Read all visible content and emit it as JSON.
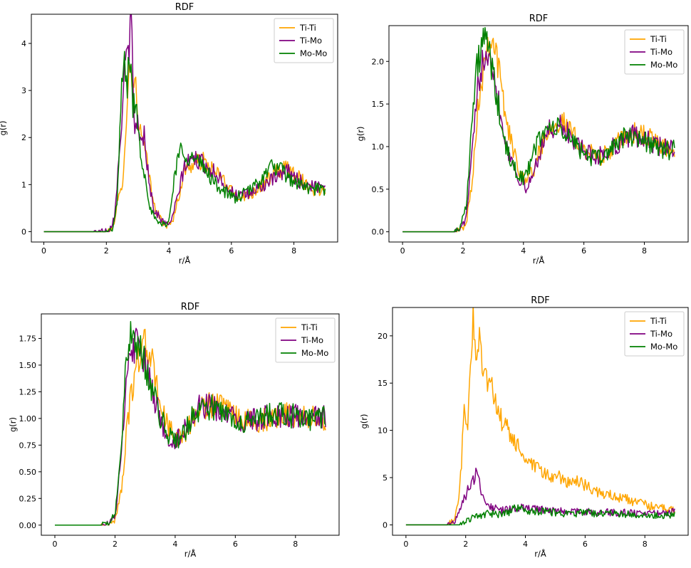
{
  "chart_data": [
    {
      "type": "line",
      "title": "RDF",
      "xlabel": "r/Å",
      "ylabel": "g(r)",
      "xlim": [
        -0.4,
        9.4
      ],
      "ylim": [
        -0.22,
        4.62
      ],
      "xticks": [
        0,
        2,
        4,
        6,
        8
      ],
      "xtick_labels": [
        "0",
        "2",
        "4",
        "6",
        "8"
      ],
      "yticks": [
        0,
        1,
        2,
        3,
        4
      ],
      "ytick_labels": [
        "0",
        "1",
        "2",
        "3",
        "4"
      ],
      "legend_position": "top-right",
      "series": [
        {
          "name": "Ti-Ti",
          "color": "#FFA500",
          "x": [
            0,
            1.6,
            2.0,
            2.2,
            2.35,
            2.5,
            2.6,
            2.75,
            2.85,
            2.95,
            3.05,
            3.2,
            3.35,
            3.5,
            3.7,
            3.9,
            4.1,
            4.3,
            4.5,
            4.8,
            5.1,
            5.4,
            5.7,
            6.0,
            6.3,
            6.6,
            6.9,
            7.2,
            7.5,
            7.8,
            8.1,
            8.4,
            8.7,
            9.0
          ],
          "y": [
            0,
            0,
            0,
            0.05,
            0.6,
            0.9,
            2.0,
            3.6,
            3.3,
            3.0,
            2.2,
            1.8,
            1.3,
            0.6,
            0.3,
            0.12,
            0.2,
            0.7,
            1.3,
            1.45,
            1.5,
            1.3,
            1.15,
            0.85,
            0.75,
            0.8,
            0.95,
            1.1,
            1.3,
            1.35,
            1.2,
            1.0,
            0.85,
            0.9
          ]
        },
        {
          "name": "Ti-Mo",
          "color": "#800080",
          "x": [
            0,
            1.6,
            1.9,
            2.1,
            2.25,
            2.4,
            2.5,
            2.6,
            2.7,
            2.8,
            2.9,
            3.0,
            3.1,
            3.2,
            3.35,
            3.5,
            3.7,
            3.9,
            4.1,
            4.3,
            4.5,
            4.8,
            5.1,
            5.4,
            5.7,
            6.0,
            6.3,
            6.6,
            6.9,
            7.2,
            7.5,
            7.8,
            8.1,
            8.4,
            8.7,
            9.0
          ],
          "y": [
            0,
            0,
            0.02,
            0.05,
            0.3,
            1.5,
            2.5,
            3.5,
            3.9,
            4.4,
            2.0,
            2.5,
            1.8,
            2.1,
            1.2,
            0.5,
            0.3,
            0.15,
            0.25,
            0.8,
            1.4,
            1.55,
            1.45,
            1.3,
            1.1,
            0.85,
            0.75,
            0.8,
            0.95,
            1.05,
            1.15,
            1.3,
            1.1,
            1.0,
            0.95,
            1.05
          ]
        },
        {
          "name": "Mo-Mo",
          "color": "#008000",
          "x": [
            0,
            1.6,
            2.0,
            2.2,
            2.35,
            2.45,
            2.55,
            2.65,
            2.75,
            2.85,
            2.95,
            3.1,
            3.25,
            3.4,
            3.6,
            3.8,
            4.0,
            4.2,
            4.4,
            4.6,
            4.9,
            5.2,
            5.5,
            5.8,
            6.1,
            6.4,
            6.7,
            7.0,
            7.3,
            7.6,
            7.9,
            8.2,
            8.5,
            8.8,
            9.0
          ],
          "y": [
            0,
            0,
            0,
            0.05,
            0.6,
            2.5,
            3.8,
            3.0,
            3.8,
            2.6,
            2.8,
            1.6,
            1.2,
            0.5,
            0.2,
            0.15,
            0.2,
            1.3,
            1.8,
            1.6,
            1.5,
            1.3,
            1.0,
            0.85,
            0.7,
            0.8,
            0.95,
            1.15,
            1.4,
            1.3,
            1.1,
            1.0,
            0.9,
            0.9,
            0.85
          ]
        }
      ]
    },
    {
      "type": "line",
      "title": "RDF",
      "xlabel": "r/Å",
      "ylabel": "g(r)",
      "xlim": [
        -0.45,
        9.45
      ],
      "ylim": [
        -0.12,
        2.42
      ],
      "xticks": [
        0,
        2,
        4,
        6,
        8
      ],
      "xtick_labels": [
        "0",
        "2",
        "4",
        "6",
        "8"
      ],
      "yticks": [
        0.0,
        0.5,
        1.0,
        1.5,
        2.0
      ],
      "ytick_labels": [
        "0.0",
        "0.5",
        "1.0",
        "1.5",
        "2.0"
      ],
      "legend_position": "top-right",
      "series": [
        {
          "name": "Ti-Ti",
          "color": "#FFA500",
          "x": [
            0,
            1.7,
            1.9,
            2.1,
            2.3,
            2.5,
            2.7,
            2.85,
            3.0,
            3.15,
            3.3,
            3.5,
            3.7,
            3.9,
            4.1,
            4.3,
            4.5,
            4.7,
            4.9,
            5.1,
            5.3,
            5.5,
            5.8,
            6.1,
            6.4,
            6.7,
            7.0,
            7.3,
            7.6,
            7.9,
            8.2,
            8.5,
            8.8,
            9.0
          ],
          "y": [
            0,
            0,
            0.02,
            0.08,
            0.6,
            1.5,
            2.0,
            2.3,
            2.25,
            2.0,
            1.6,
            1.2,
            0.9,
            0.7,
            0.62,
            0.7,
            0.9,
            1.1,
            1.25,
            1.3,
            1.28,
            1.2,
            1.05,
            0.95,
            0.88,
            0.9,
            1.0,
            1.1,
            1.15,
            1.15,
            1.1,
            1.0,
            0.95,
            0.93
          ]
        },
        {
          "name": "Ti-Mo",
          "color": "#800080",
          "x": [
            0,
            1.7,
            1.9,
            2.1,
            2.3,
            2.5,
            2.65,
            2.8,
            2.95,
            3.1,
            3.3,
            3.5,
            3.7,
            3.9,
            4.1,
            4.3,
            4.5,
            4.7,
            4.9,
            5.1,
            5.3,
            5.5,
            5.8,
            6.1,
            6.4,
            6.7,
            7.0,
            7.3,
            7.6,
            7.9,
            8.2,
            8.5,
            8.8,
            9.0
          ],
          "y": [
            0,
            0,
            0.03,
            0.15,
            0.9,
            1.7,
            2.05,
            2.2,
            2.05,
            1.7,
            1.25,
            0.95,
            0.75,
            0.6,
            0.5,
            0.65,
            0.9,
            1.1,
            1.2,
            1.25,
            1.22,
            1.15,
            1.0,
            0.92,
            0.88,
            0.92,
            1.0,
            1.08,
            1.13,
            1.12,
            1.05,
            1.0,
            0.97,
            0.95
          ]
        },
        {
          "name": "Mo-Mo",
          "color": "#008000",
          "x": [
            0,
            1.7,
            1.9,
            2.1,
            2.3,
            2.45,
            2.6,
            2.75,
            2.9,
            3.05,
            3.2,
            3.4,
            3.6,
            3.8,
            4.0,
            4.2,
            4.4,
            4.6,
            4.8,
            5.0,
            5.2,
            5.5,
            5.8,
            6.1,
            6.4,
            6.7,
            7.0,
            7.3,
            7.6,
            7.9,
            8.2,
            8.5,
            8.8,
            9.0
          ],
          "y": [
            0,
            0,
            0.05,
            0.3,
            1.3,
            1.9,
            2.15,
            2.25,
            2.05,
            1.7,
            1.4,
            1.0,
            0.8,
            0.7,
            0.62,
            0.75,
            1.0,
            1.15,
            1.2,
            1.22,
            1.2,
            1.1,
            1.0,
            0.9,
            0.85,
            0.9,
            1.02,
            1.1,
            1.12,
            1.1,
            1.03,
            0.98,
            0.95,
            0.96
          ]
        }
      ]
    },
    {
      "type": "line",
      "title": "RDF",
      "xlabel": "r/Å",
      "ylabel": "g(r)",
      "xlim": [
        -0.45,
        9.45
      ],
      "ylim": [
        -0.095,
        1.98
      ],
      "xticks": [
        0,
        2,
        4,
        6,
        8
      ],
      "xtick_labels": [
        "0",
        "2",
        "4",
        "6",
        "8"
      ],
      "yticks": [
        0.0,
        0.25,
        0.5,
        0.75,
        1.0,
        1.25,
        1.5,
        1.75
      ],
      "ytick_labels": [
        "0.00",
        "0.25",
        "0.50",
        "0.75",
        "1.00",
        "1.25",
        "1.50",
        "1.75"
      ],
      "legend_position": "top-right",
      "series": [
        {
          "name": "Ti-Ti",
          "color": "#FFA500",
          "x": [
            0,
            1.5,
            1.8,
            2.0,
            2.2,
            2.4,
            2.6,
            2.8,
            3.0,
            3.2,
            3.4,
            3.6,
            3.8,
            4.0,
            4.2,
            4.4,
            4.6,
            4.8,
            5.0,
            5.2,
            5.4,
            5.6,
            5.9,
            6.2,
            6.5,
            6.8,
            7.1,
            7.4,
            7.7,
            8.0,
            8.3,
            8.6,
            9.0
          ],
          "y": [
            0,
            0,
            0.01,
            0.05,
            0.3,
            0.9,
            1.35,
            1.6,
            1.7,
            1.55,
            1.3,
            1.05,
            0.9,
            0.82,
            0.83,
            0.9,
            1.0,
            1.08,
            1.12,
            1.13,
            1.12,
            1.08,
            1.03,
            1.0,
            0.97,
            0.97,
            1.0,
            1.02,
            1.04,
            1.03,
            1.02,
            1.0,
            1.0
          ]
        },
        {
          "name": "Ti-Mo",
          "color": "#800080",
          "x": [
            0,
            1.5,
            1.8,
            2.0,
            2.2,
            2.35,
            2.5,
            2.65,
            2.8,
            3.0,
            3.2,
            3.4,
            3.6,
            3.8,
            4.0,
            4.2,
            4.4,
            4.6,
            4.8,
            5.0,
            5.2,
            5.4,
            5.6,
            5.9,
            6.2,
            6.5,
            6.8,
            7.1,
            7.4,
            7.7,
            8.0,
            8.3,
            8.6,
            9.0
          ],
          "y": [
            0,
            0,
            0.02,
            0.08,
            0.6,
            1.2,
            1.6,
            1.7,
            1.65,
            1.5,
            1.3,
            1.1,
            0.9,
            0.82,
            0.78,
            0.85,
            0.95,
            1.05,
            1.1,
            1.12,
            1.1,
            1.08,
            1.05,
            1.0,
            0.97,
            0.97,
            1.0,
            1.02,
            1.03,
            1.02,
            1.02,
            1.0,
            1.0,
            1.01
          ]
        },
        {
          "name": "Mo-Mo",
          "color": "#008000",
          "x": [
            0,
            1.5,
            1.8,
            2.0,
            2.2,
            2.35,
            2.5,
            2.6,
            2.75,
            2.9,
            3.05,
            3.2,
            3.4,
            3.6,
            3.8,
            4.0,
            4.2,
            4.4,
            4.6,
            4.8,
            5.0,
            5.2,
            5.4,
            5.6,
            5.9,
            6.2,
            6.5,
            6.8,
            7.1,
            7.4,
            7.7,
            8.0,
            8.3,
            8.6,
            9.0
          ],
          "y": [
            0,
            0,
            0.02,
            0.1,
            0.7,
            1.4,
            1.75,
            1.87,
            1.7,
            1.6,
            1.45,
            1.3,
            1.1,
            0.95,
            0.85,
            0.8,
            0.82,
            0.92,
            1.03,
            1.1,
            1.12,
            1.1,
            1.08,
            1.05,
            1.0,
            0.98,
            0.97,
            1.0,
            1.03,
            1.04,
            1.03,
            1.02,
            1.0,
            1.0,
            1.01
          ]
        }
      ]
    },
    {
      "type": "line",
      "title": "RDF",
      "xlabel": "r/Å",
      "ylabel": "g(r)",
      "xlim": [
        -0.45,
        9.45
      ],
      "ylim": [
        -1.1,
        23.0
      ],
      "xticks": [
        0,
        2,
        4,
        6,
        8
      ],
      "xtick_labels": [
        "0",
        "2",
        "4",
        "6",
        "8"
      ],
      "yticks": [
        0,
        5,
        10,
        15,
        20
      ],
      "ytick_labels": [
        "0",
        "5",
        "10",
        "15",
        "20"
      ],
      "legend_position": "top-right",
      "series": [
        {
          "name": "Ti-Ti",
          "color": "#FFA500",
          "x": [
            0,
            1.4,
            1.6,
            1.75,
            1.85,
            1.95,
            2.05,
            2.15,
            2.25,
            2.35,
            2.45,
            2.6,
            2.75,
            2.9,
            3.05,
            3.2,
            3.4,
            3.6,
            3.8,
            4.0,
            4.3,
            4.6,
            4.9,
            5.2,
            5.5,
            5.8,
            6.1,
            6.4,
            6.7,
            7.0,
            7.3,
            7.6,
            7.9,
            8.2,
            8.5,
            8.8,
            9.0
          ],
          "y": [
            0,
            0,
            0.5,
            2.5,
            6,
            12,
            10,
            15,
            22,
            18,
            20,
            17,
            15,
            14,
            12,
            11,
            10,
            9,
            8,
            7,
            6,
            5.5,
            5,
            5,
            4.5,
            4.5,
            4,
            3.5,
            3.2,
            3,
            2.8,
            2.5,
            2.2,
            2,
            1.8,
            1.6,
            1.5
          ]
        },
        {
          "name": "Ti-Mo",
          "color": "#800080",
          "x": [
            0,
            1.4,
            1.6,
            1.75,
            1.9,
            2.05,
            2.2,
            2.35,
            2.5,
            2.65,
            2.8,
            3.0,
            3.2,
            3.5,
            3.8,
            4.1,
            4.4,
            4.8,
            5.2,
            5.6,
            6.0,
            6.5,
            7.0,
            7.5,
            8.0,
            8.5,
            9.0
          ],
          "y": [
            0,
            0,
            0.3,
            1.2,
            2.5,
            3.5,
            4.5,
            5.3,
            4.0,
            2.5,
            2.0,
            1.8,
            1.5,
            1.6,
            1.8,
            1.7,
            1.6,
            1.5,
            1.5,
            1.4,
            1.4,
            1.3,
            1.3,
            1.3,
            1.3,
            1.3,
            1.4
          ]
        },
        {
          "name": "Mo-Mo",
          "color": "#008000",
          "x": [
            0,
            1.8,
            2.0,
            2.2,
            2.5,
            2.8,
            3.1,
            3.4,
            3.7,
            4.0,
            4.5,
            5.0,
            5.5,
            6.0,
            6.5,
            7.0,
            7.5,
            8.0,
            8.5,
            9.0
          ],
          "y": [
            0,
            0,
            0.3,
            0.8,
            1.0,
            1.2,
            1.1,
            1.3,
            1.8,
            1.5,
            1.4,
            1.3,
            1.2,
            1.3,
            1.2,
            1.2,
            1.1,
            1.1,
            1.0,
            1.1
          ]
        }
      ]
    }
  ]
}
